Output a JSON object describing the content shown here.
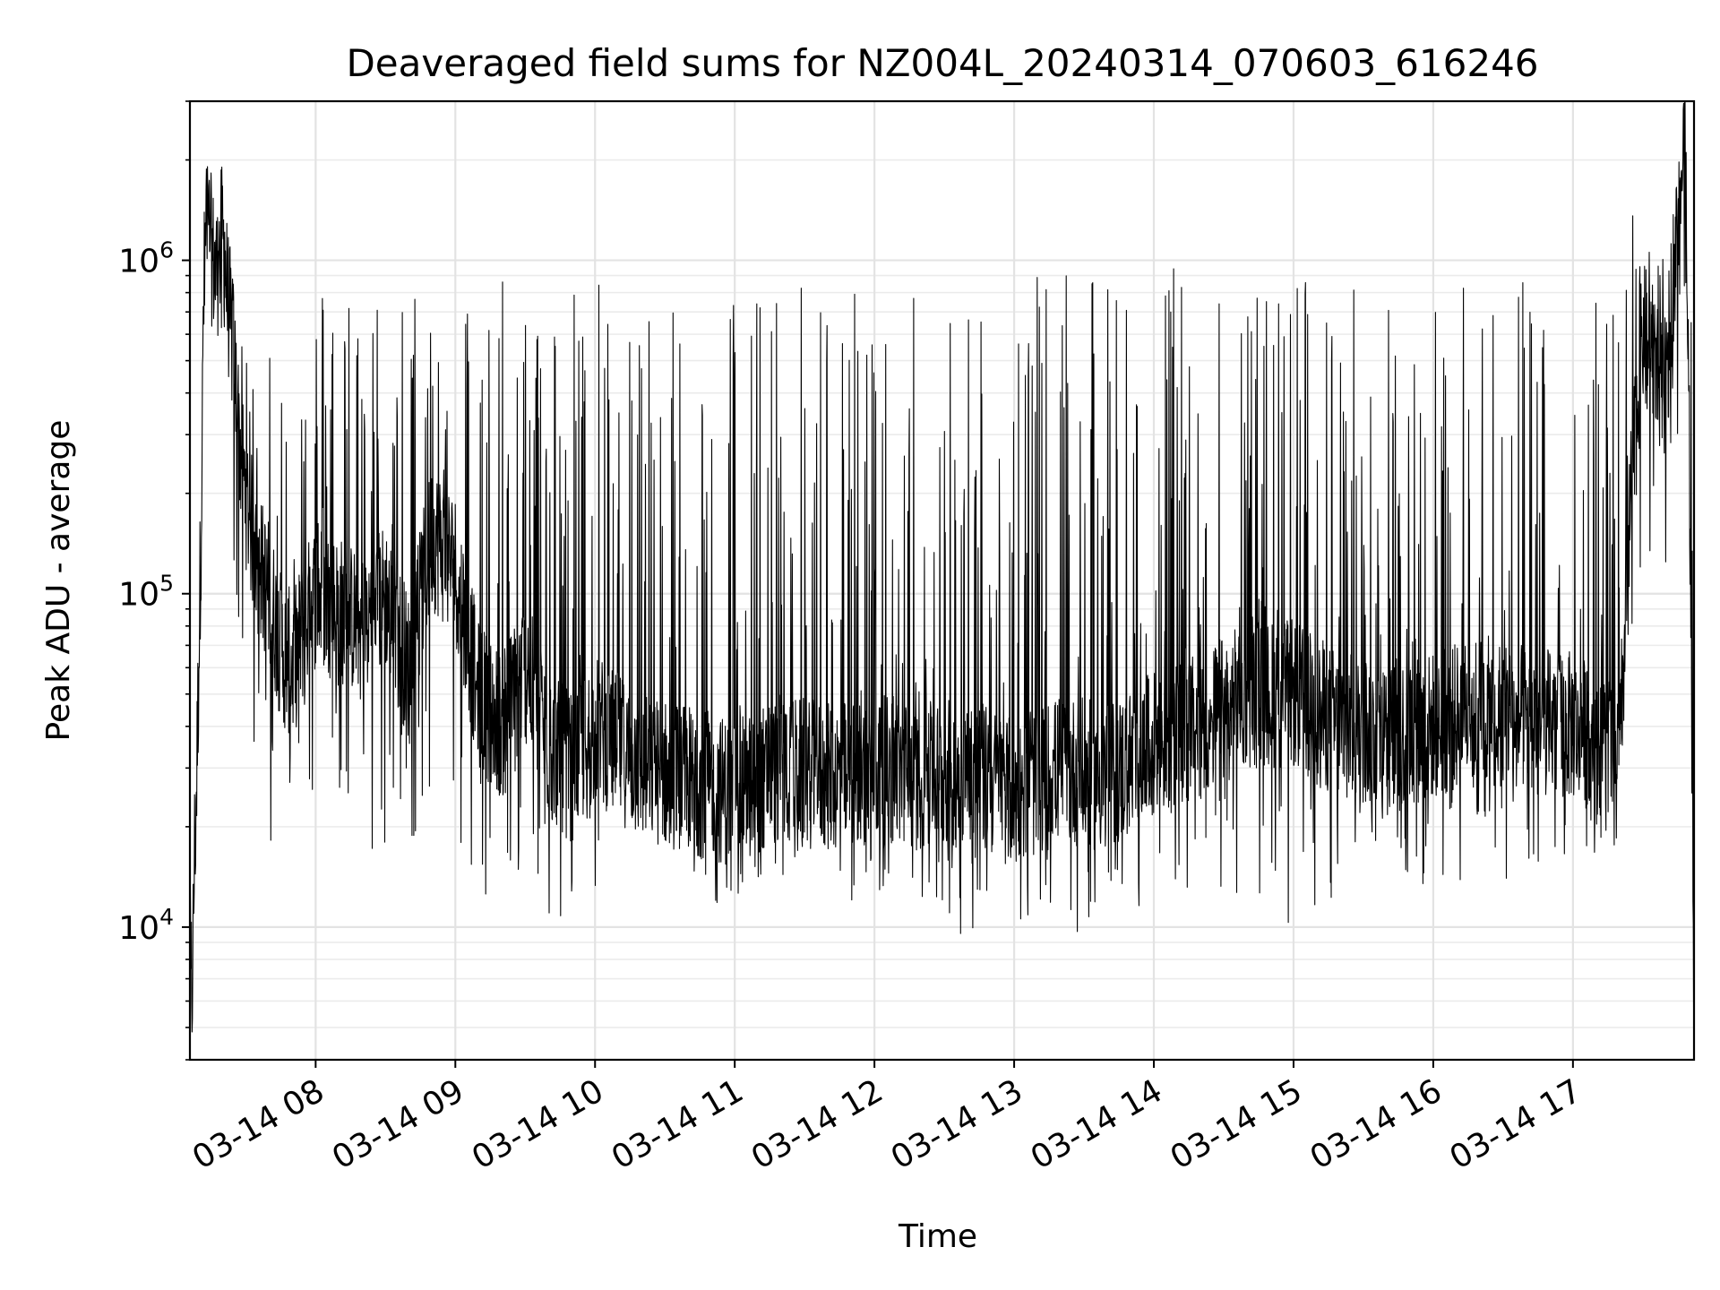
{
  "chart_data": {
    "type": "line",
    "title": "Deaveraged field sums for NZ004L_20240314_070603_616246",
    "xlabel": "Time",
    "ylabel": "Peak ADU - average",
    "yscale": "log",
    "ylim": [
      4000,
      3000000
    ],
    "xlim": [
      "2024-03-14 07:06",
      "2024-03-14 17:52"
    ],
    "grid": true,
    "x_ticks": [
      {
        "value": "2024-03-14 08:00",
        "label": "03-14 08"
      },
      {
        "value": "2024-03-14 09:00",
        "label": "03-14 09"
      },
      {
        "value": "2024-03-14 10:00",
        "label": "03-14 10"
      },
      {
        "value": "2024-03-14 11:00",
        "label": "03-14 11"
      },
      {
        "value": "2024-03-14 12:00",
        "label": "03-14 12"
      },
      {
        "value": "2024-03-14 13:00",
        "label": "03-14 13"
      },
      {
        "value": "2024-03-14 14:00",
        "label": "03-14 14"
      },
      {
        "value": "2024-03-14 15:00",
        "label": "03-14 15"
      },
      {
        "value": "2024-03-14 16:00",
        "label": "03-14 16"
      },
      {
        "value": "2024-03-14 17:00",
        "label": "03-14 17"
      }
    ],
    "y_ticks": [
      {
        "value": 10000,
        "base": "10",
        "exp": "4"
      },
      {
        "value": 100000,
        "base": "10",
        "exp": "5"
      },
      {
        "value": 1000000,
        "base": "10",
        "exp": "6"
      }
    ],
    "series": [
      {
        "color": "#000000",
        "x": [
          "2024-03-14 07:06",
          "2024-03-14 07:07",
          "2024-03-14 07:08",
          "2024-03-14 07:09",
          "2024-03-14 07:11",
          "2024-03-14 07:12",
          "2024-03-14 07:13",
          "2024-03-14 07:15",
          "2024-03-14 07:17",
          "2024-03-14 07:20",
          "2024-03-14 07:22",
          "2024-03-14 07:25",
          "2024-03-14 07:27",
          "2024-03-14 07:30",
          "2024-03-14 07:33",
          "2024-03-14 07:36",
          "2024-03-14 07:40",
          "2024-03-14 07:45",
          "2024-03-14 07:50",
          "2024-03-14 07:55",
          "2024-03-14 08:00",
          "2024-03-14 08:10",
          "2024-03-14 08:20",
          "2024-03-14 08:30",
          "2024-03-14 08:40",
          "2024-03-14 08:50",
          "2024-03-14 09:00",
          "2024-03-14 09:10",
          "2024-03-14 09:20",
          "2024-03-14 09:30",
          "2024-03-14 09:40",
          "2024-03-14 09:50",
          "2024-03-14 10:00",
          "2024-03-14 10:20",
          "2024-03-14 10:40",
          "2024-03-14 11:00",
          "2024-03-14 11:20",
          "2024-03-14 11:40",
          "2024-03-14 12:00",
          "2024-03-14 12:20",
          "2024-03-14 12:40",
          "2024-03-14 13:00",
          "2024-03-14 13:20",
          "2024-03-14 13:40",
          "2024-03-14 14:00",
          "2024-03-14 14:20",
          "2024-03-14 14:40",
          "2024-03-14 15:00",
          "2024-03-14 15:20",
          "2024-03-14 15:40",
          "2024-03-14 16:00",
          "2024-03-14 16:20",
          "2024-03-14 16:40",
          "2024-03-14 17:00",
          "2024-03-14 17:15",
          "2024-03-14 17:20",
          "2024-03-14 17:25",
          "2024-03-14 17:30",
          "2024-03-14 17:35",
          "2024-03-14 17:40",
          "2024-03-14 17:45",
          "2024-03-14 17:48",
          "2024-03-14 17:50",
          "2024-03-14 17:52"
        ],
        "y": [
          9000,
          6500,
          17000,
          30000,
          200000,
          800000,
          1400000,
          1100000,
          900000,
          1200000,
          800000,
          500000,
          300000,
          200000,
          150000,
          120000,
          100000,
          70000,
          60000,
          80000,
          100000,
          90000,
          80000,
          100000,
          60000,
          150000,
          120000,
          50000,
          40000,
          60000,
          35000,
          30000,
          40000,
          30000,
          28000,
          25000,
          30000,
          28000,
          30000,
          28000,
          30000,
          25000,
          30000,
          28000,
          35000,
          40000,
          50000,
          50000,
          40000,
          38000,
          40000,
          45000,
          42000,
          40000,
          35000,
          32000,
          200000,
          600000,
          500000,
          400000,
          1500000,
          2200000,
          300000,
          5200
        ],
        "envelope_high": [
          17000,
          17000,
          17000,
          40000,
          400000,
          1400000,
          1400000,
          1400000,
          1400000,
          1400000,
          1600000,
          1000000,
          600000,
          500000,
          500000,
          300000,
          700000,
          600000,
          600000,
          700000,
          900000,
          1000000,
          900000,
          800000,
          900000,
          800000,
          1000000,
          900000,
          900000,
          900000,
          900000,
          900000,
          900000,
          900000,
          900000,
          900000,
          900000,
          900000,
          850000,
          850000,
          900000,
          900000,
          900000,
          900000,
          950000,
          950000,
          900000,
          900000,
          900000,
          900000,
          950000,
          950000,
          950000,
          950000,
          950000,
          1000000,
          1400000,
          1400000,
          1200000,
          1200000,
          1500000,
          2300000,
          2000000,
          300000
        ],
        "envelope_low": [
          6000,
          6000,
          9000,
          20000,
          100000,
          500000,
          700000,
          700000,
          600000,
          500000,
          400000,
          100000,
          80000,
          40000,
          35000,
          20000,
          18000,
          18000,
          25000,
          25000,
          25000,
          25000,
          20000,
          14000,
          18000,
          20000,
          15000,
          11000,
          10000,
          10000,
          9500,
          10000,
          12000,
          11000,
          8500,
          12000,
          13000,
          13000,
          10000,
          12000,
          9000,
          11000,
          8000,
          12000,
          11000,
          12000,
          11000,
          9000,
          12000,
          14000,
          10500,
          13000,
          14000,
          15000,
          17000,
          17000,
          50000,
          150000,
          100000,
          100000,
          200000,
          900000,
          500000,
          5000
        ]
      }
    ]
  }
}
